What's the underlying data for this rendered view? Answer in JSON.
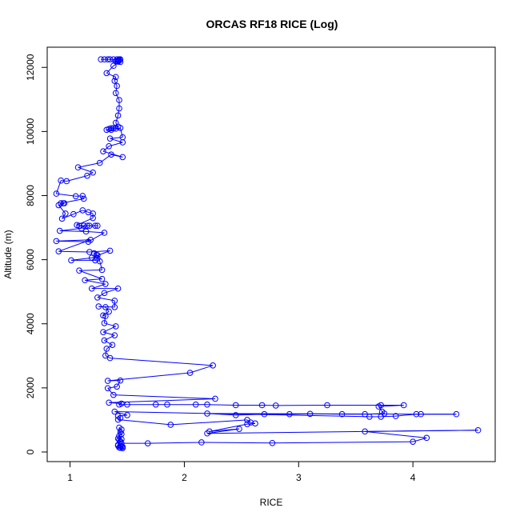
{
  "chart_data": {
    "type": "line",
    "title": "ORCAS RF18 RICE (Log)",
    "xlabel": "RICE",
    "ylabel": "Altitude (m)",
    "xlim": [
      0.8,
      4.72
    ],
    "ylim": [
      -300,
      12630
    ],
    "xticks": [
      1,
      2,
      3,
      4
    ],
    "yticks": [
      0,
      2000,
      4000,
      6000,
      8000,
      10000,
      12000
    ],
    "grid": false,
    "marker": "open-circle",
    "line_color": "#0000ff",
    "series": [
      {
        "points": [
          [
            1.27,
            12250
          ],
          [
            1.3,
            12250
          ],
          [
            1.33,
            12250
          ],
          [
            1.35,
            12250
          ],
          [
            1.38,
            12250
          ],
          [
            1.41,
            12250
          ],
          [
            1.43,
            12250
          ],
          [
            1.44,
            12250
          ],
          [
            1.43,
            12230
          ],
          [
            1.42,
            12220
          ],
          [
            1.43,
            12210
          ],
          [
            1.41,
            12200
          ],
          [
            1.4,
            12190
          ],
          [
            1.42,
            12180
          ],
          [
            1.44,
            12170
          ],
          [
            1.38,
            12050
          ],
          [
            1.32,
            11820
          ],
          [
            1.4,
            11700
          ],
          [
            1.39,
            11580
          ],
          [
            1.41,
            11420
          ],
          [
            1.4,
            11200
          ],
          [
            1.43,
            10980
          ],
          [
            1.43,
            10720
          ],
          [
            1.42,
            10500
          ],
          [
            1.4,
            10270
          ],
          [
            1.42,
            10150
          ],
          [
            1.38,
            10100
          ],
          [
            1.36,
            10100
          ],
          [
            1.34,
            10080
          ],
          [
            1.32,
            10050
          ],
          [
            1.36,
            10050
          ],
          [
            1.4,
            10090
          ],
          [
            1.44,
            10110
          ],
          [
            1.46,
            9820
          ],
          [
            1.35,
            9780
          ],
          [
            1.46,
            9660
          ],
          [
            1.34,
            9540
          ],
          [
            1.29,
            9380
          ],
          [
            1.46,
            9200
          ],
          [
            1.36,
            9280
          ],
          [
            1.26,
            9020
          ],
          [
            1.07,
            8880
          ],
          [
            1.2,
            8720
          ],
          [
            1.15,
            8620
          ],
          [
            0.97,
            8450
          ],
          [
            0.92,
            8470
          ],
          [
            0.88,
            8060
          ],
          [
            1.05,
            7980
          ],
          [
            1.11,
            7990
          ],
          [
            1.12,
            7900
          ],
          [
            0.92,
            7760
          ],
          [
            0.94,
            7760
          ],
          [
            0.95,
            7760
          ],
          [
            0.9,
            7700
          ],
          [
            0.96,
            7440
          ],
          [
            0.93,
            7280
          ],
          [
            1.03,
            7420
          ],
          [
            1.11,
            7540
          ],
          [
            1.16,
            7480
          ],
          [
            1.2,
            7440
          ],
          [
            1.2,
            7300
          ],
          [
            1.06,
            7080
          ],
          [
            1.08,
            7060
          ],
          [
            1.15,
            7060
          ],
          [
            1.17,
            7060
          ],
          [
            1.22,
            7060
          ],
          [
            1.24,
            7060
          ],
          [
            1.12,
            7060
          ],
          [
            1.1,
            6980
          ],
          [
            0.91,
            6900
          ],
          [
            1.14,
            6880
          ],
          [
            1.3,
            6840
          ],
          [
            1.16,
            6560
          ],
          [
            0.88,
            6580
          ],
          [
            1.18,
            6620
          ],
          [
            0.9,
            6260
          ],
          [
            1.17,
            6240
          ],
          [
            1.35,
            6280
          ],
          [
            1.19,
            6060
          ],
          [
            1.01,
            5980
          ],
          [
            1.22,
            5980
          ],
          [
            1.24,
            6040
          ],
          [
            1.23,
            6150
          ],
          [
            1.21,
            6200
          ],
          [
            1.24,
            6140
          ],
          [
            1.26,
            5950
          ],
          [
            1.28,
            5680
          ],
          [
            1.08,
            5660
          ],
          [
            1.28,
            5400
          ],
          [
            1.13,
            5360
          ],
          [
            1.31,
            5240
          ],
          [
            1.19,
            5100
          ],
          [
            1.42,
            5100
          ],
          [
            1.3,
            4960
          ],
          [
            1.24,
            4820
          ],
          [
            1.39,
            4720
          ],
          [
            1.39,
            4520
          ],
          [
            1.25,
            4540
          ],
          [
            1.31,
            4520
          ],
          [
            1.34,
            4380
          ],
          [
            1.29,
            4260
          ],
          [
            1.31,
            4240
          ],
          [
            1.3,
            4020
          ],
          [
            1.4,
            3920
          ],
          [
            1.29,
            3740
          ],
          [
            1.39,
            3640
          ],
          [
            1.3,
            3480
          ],
          [
            1.37,
            3340
          ],
          [
            1.32,
            3220
          ],
          [
            1.31,
            3010
          ],
          [
            1.35,
            2930
          ],
          [
            2.25,
            2700
          ],
          [
            2.05,
            2470
          ],
          [
            1.33,
            2220
          ],
          [
            1.44,
            2230
          ],
          [
            1.41,
            2040
          ],
          [
            1.33,
            1990
          ],
          [
            1.38,
            1780
          ],
          [
            2.27,
            1660
          ],
          [
            1.34,
            1540
          ],
          [
            1.45,
            1510
          ],
          [
            1.43,
            1480
          ],
          [
            1.5,
            1480
          ],
          [
            1.75,
            1480
          ],
          [
            1.85,
            1480
          ],
          [
            2.1,
            1480
          ],
          [
            2.2,
            1480
          ],
          [
            2.45,
            1460
          ],
          [
            2.68,
            1460
          ],
          [
            2.8,
            1450
          ],
          [
            3.25,
            1460
          ],
          [
            3.72,
            1460
          ],
          [
            3.92,
            1460
          ],
          [
            3.7,
            1420
          ],
          [
            3.73,
            1260
          ],
          [
            3.75,
            1200
          ],
          [
            3.58,
            1180
          ],
          [
            3.38,
            1180
          ],
          [
            3.1,
            1190
          ],
          [
            2.92,
            1180
          ],
          [
            2.7,
            1180
          ],
          [
            2.45,
            1150
          ],
          [
            2.2,
            1200
          ],
          [
            4.07,
            1180
          ],
          [
            4.38,
            1180
          ],
          [
            4.03,
            1180
          ],
          [
            3.85,
            1120
          ],
          [
            3.72,
            1100
          ],
          [
            3.62,
            1100
          ],
          [
            1.39,
            1260
          ],
          [
            1.5,
            1150
          ],
          [
            1.42,
            1120
          ],
          [
            1.44,
            1060
          ],
          [
            1.42,
            1010
          ],
          [
            1.88,
            850
          ],
          [
            2.55,
            1000
          ],
          [
            2.58,
            920
          ],
          [
            2.62,
            890
          ],
          [
            2.55,
            870
          ],
          [
            2.22,
            640
          ],
          [
            2.48,
            720
          ],
          [
            2.2,
            580
          ],
          [
            4.57,
            680
          ],
          [
            3.58,
            640
          ],
          [
            4.12,
            440
          ],
          [
            4.0,
            320
          ],
          [
            2.77,
            280
          ],
          [
            2.15,
            300
          ],
          [
            1.68,
            270
          ],
          [
            1.45,
            270
          ],
          [
            1.44,
            330
          ],
          [
            1.43,
            380
          ],
          [
            1.45,
            400
          ],
          [
            1.42,
            420
          ],
          [
            1.43,
            500
          ],
          [
            1.45,
            560
          ],
          [
            1.44,
            620
          ],
          [
            1.45,
            700
          ],
          [
            1.43,
            760
          ],
          [
            1.42,
            200
          ],
          [
            1.44,
            180
          ],
          [
            1.46,
            160
          ],
          [
            1.44,
            130
          ],
          [
            1.46,
            120
          ],
          [
            1.43,
            140
          ],
          [
            1.45,
            170
          ],
          [
            1.42,
            220
          ],
          [
            1.44,
            330
          ]
        ]
      }
    ]
  }
}
